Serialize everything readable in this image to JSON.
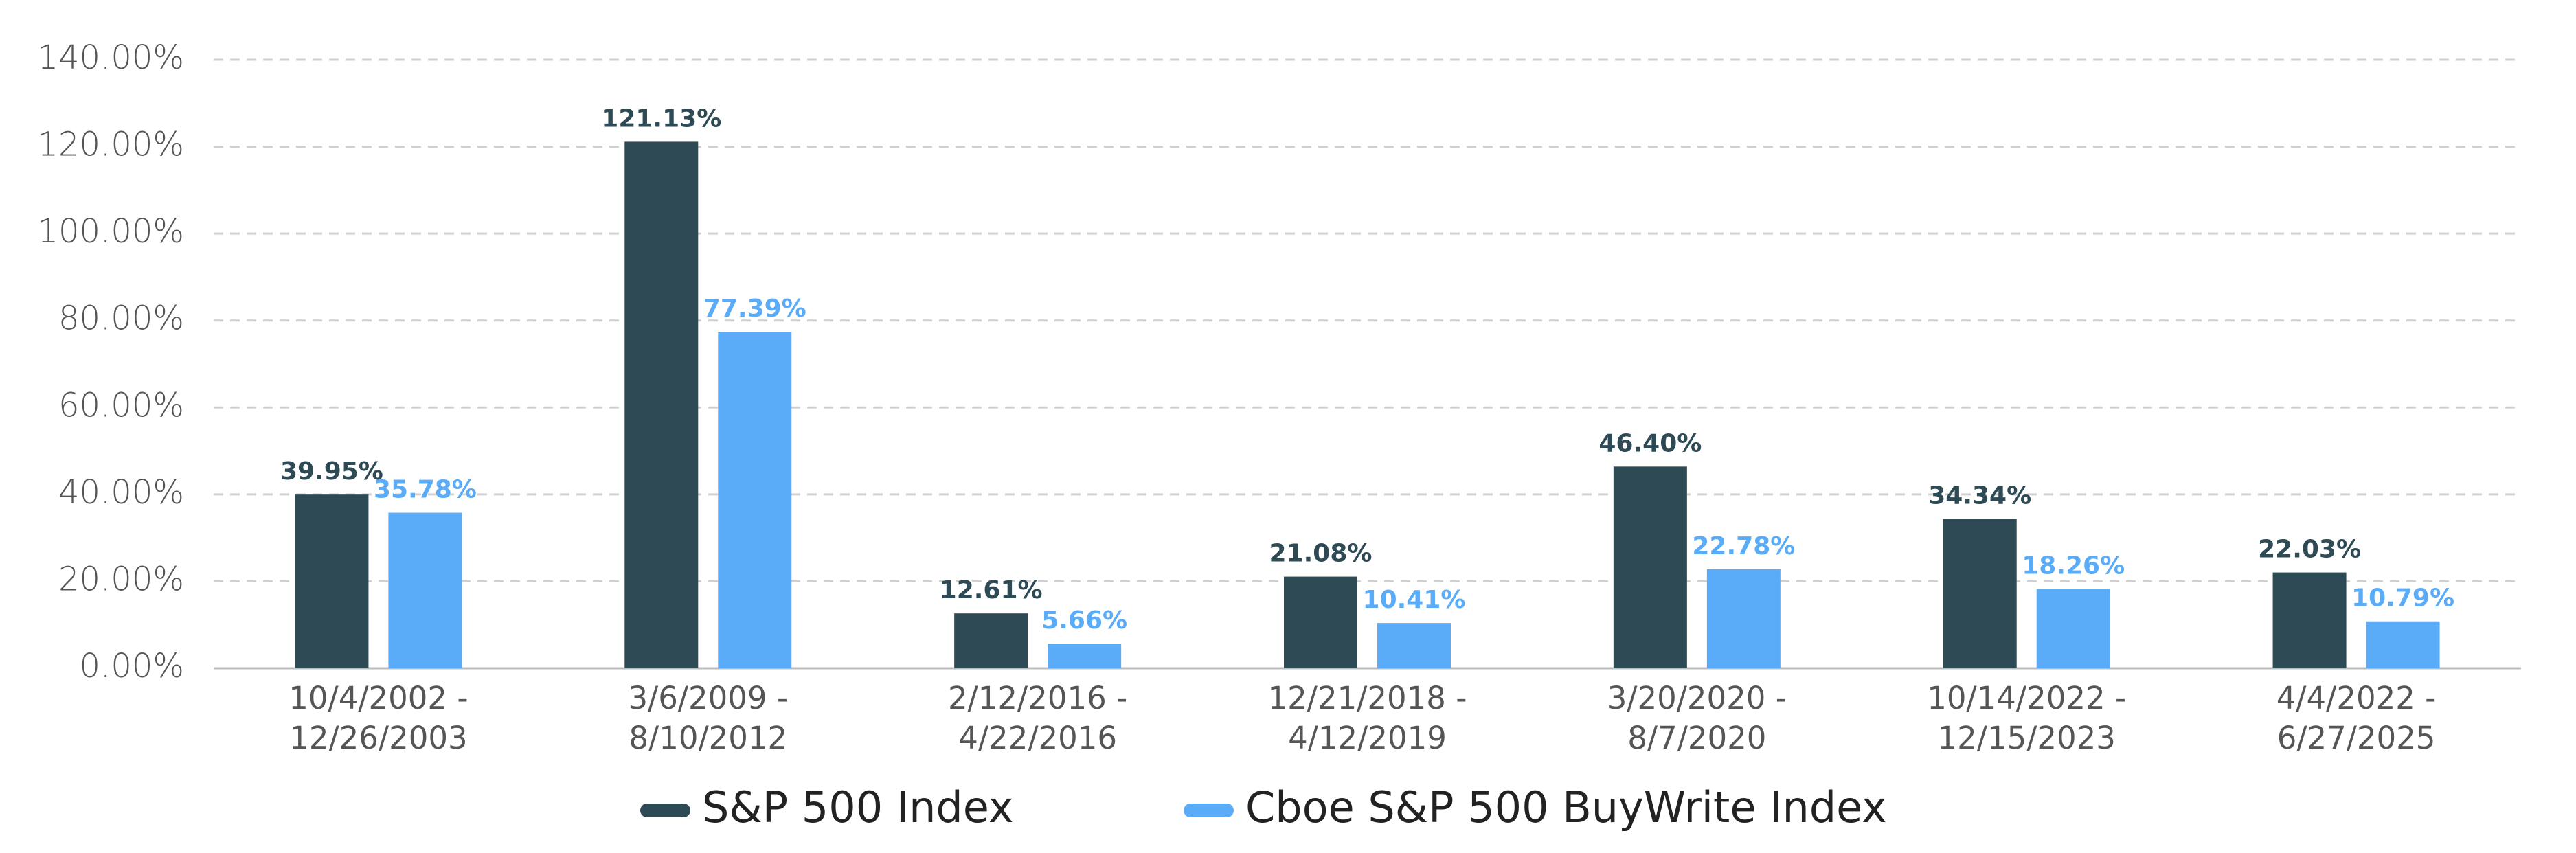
{
  "chart_data": {
    "type": "bar",
    "categories": [
      [
        "10/4/2002 -",
        "12/26/2003"
      ],
      [
        "3/6/2009 -",
        "8/10/2012"
      ],
      [
        "2/12/2016 -",
        "4/22/2016"
      ],
      [
        "12/21/2018 -",
        "4/12/2019"
      ],
      [
        "3/20/2020 -",
        "8/7/2020"
      ],
      [
        "10/14/2022 -",
        "12/15/2023"
      ],
      [
        "4/4/2022 -",
        "6/27/2025"
      ]
    ],
    "series": [
      {
        "name": "S&P 500 Index",
        "color": "#2d4a55",
        "values": [
          39.95,
          121.13,
          12.61,
          21.08,
          46.4,
          34.34,
          22.03
        ],
        "value_labels": [
          "39.95%",
          "121.13%",
          "12.61%",
          "21.08%",
          "46.40%",
          "34.34%",
          "22.03%"
        ]
      },
      {
        "name": "Cboe S&P 500 BuyWrite Index",
        "color": "#5aacf8",
        "values": [
          35.78,
          77.39,
          5.66,
          10.41,
          22.78,
          18.26,
          10.79
        ],
        "value_labels": [
          "35.78%",
          "77.39%",
          "5.66%",
          "10.41%",
          "22.78%",
          "18.26%",
          "10.79%"
        ]
      }
    ],
    "ylim": [
      0,
      140
    ],
    "yticks": [
      {
        "value": 0,
        "label": "0.00%"
      },
      {
        "value": 20,
        "label": "20.00%"
      },
      {
        "value": 40,
        "label": "40.00%"
      },
      {
        "value": 60,
        "label": "60.00%"
      },
      {
        "value": 80,
        "label": "80.00%"
      },
      {
        "value": 100,
        "label": "100.00%"
      },
      {
        "value": 120,
        "label": "120.00%"
      },
      {
        "value": 140,
        "label": "140.00%"
      }
    ],
    "grid": true,
    "legend": "bottom"
  }
}
